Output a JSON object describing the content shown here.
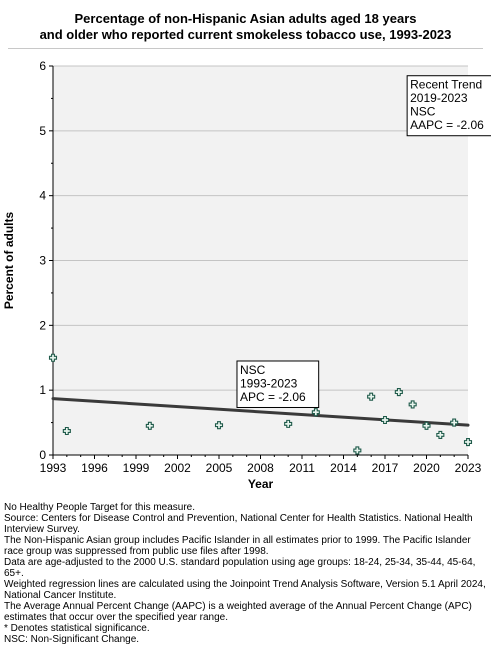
{
  "title_line1": "Percentage of non-Hispanic Asian adults aged 18 years",
  "title_line2": "and older who reported current smokeless tobacco use, 1993-2023",
  "chart_data": {
    "type": "scatter",
    "title": "Percentage of non-Hispanic Asian adults aged 18 years and older who reported current smokeless tobacco use, 1993-2023",
    "xlabel": "Year",
    "ylabel": "Percent of adults",
    "xlim": [
      1993,
      2023
    ],
    "ylim": [
      0,
      6
    ],
    "x_ticks": [
      1993,
      1996,
      1999,
      2002,
      2005,
      2008,
      2011,
      2014,
      2017,
      2020,
      2023
    ],
    "y_ticks": [
      0,
      1,
      2,
      3,
      4,
      5,
      6
    ],
    "grid": true,
    "series": [
      {
        "marker": "plus",
        "color": "#1f5a4a",
        "points": [
          {
            "x": 1993,
            "y": 1.5
          },
          {
            "x": 1994,
            "y": 0.37
          },
          {
            "x": 2000,
            "y": 0.45
          },
          {
            "x": 2005,
            "y": 0.46
          },
          {
            "x": 2010,
            "y": 0.48
          },
          {
            "x": 2012,
            "y": 0.66
          },
          {
            "x": 2015,
            "y": 0.07
          },
          {
            "x": 2016,
            "y": 0.9
          },
          {
            "x": 2017,
            "y": 0.54
          },
          {
            "x": 2018,
            "y": 0.97
          },
          {
            "x": 2019,
            "y": 0.78
          },
          {
            "x": 2020,
            "y": 0.45
          },
          {
            "x": 2021,
            "y": 0.31
          },
          {
            "x": 2022,
            "y": 0.5
          },
          {
            "x": 2023,
            "y": 0.2
          }
        ]
      }
    ],
    "trend_line": {
      "color": "#3a3a3a",
      "points": [
        [
          1993,
          0.87
        ],
        [
          2023,
          0.46
        ]
      ]
    },
    "annotations": [
      {
        "lines": [
          "NSC",
          "1993-2023",
          "APC = -2.06"
        ],
        "x": 2006.3,
        "y": 1.45
      },
      {
        "lines": [
          "Recent Trend",
          "2019-2023",
          "NSC",
          "AAPC = -2.06"
        ],
        "x": 2018.6,
        "y": 5.85
      }
    ]
  },
  "notes": [
    "No Healthy People Target for this measure.",
    "Source: Centers for Disease Control and Prevention, National Center for Health Statistics. National Health Interview Survey.",
    "The Non-Hispanic Asian group includes Pacific Islander in all estimates prior to 1999. The Pacific Islander race group was suppressed from public use files after 1998.",
    "Data are age-adjusted to the 2000 U.S. standard population using age groups: 18-24, 25-34, 35-44, 45-64, 65+.",
    "Weighted regression lines are calculated using the Joinpoint Trend Analysis Software, Version 5.1 April 2024, National Cancer Institute.",
    "The Average Annual Percent Change (AAPC) is a weighted average of the Annual Percent Change (APC) estimates that occur over the specified year range.",
    "* Denotes statistical significance.",
    "NSC: Non-Significant Change."
  ]
}
